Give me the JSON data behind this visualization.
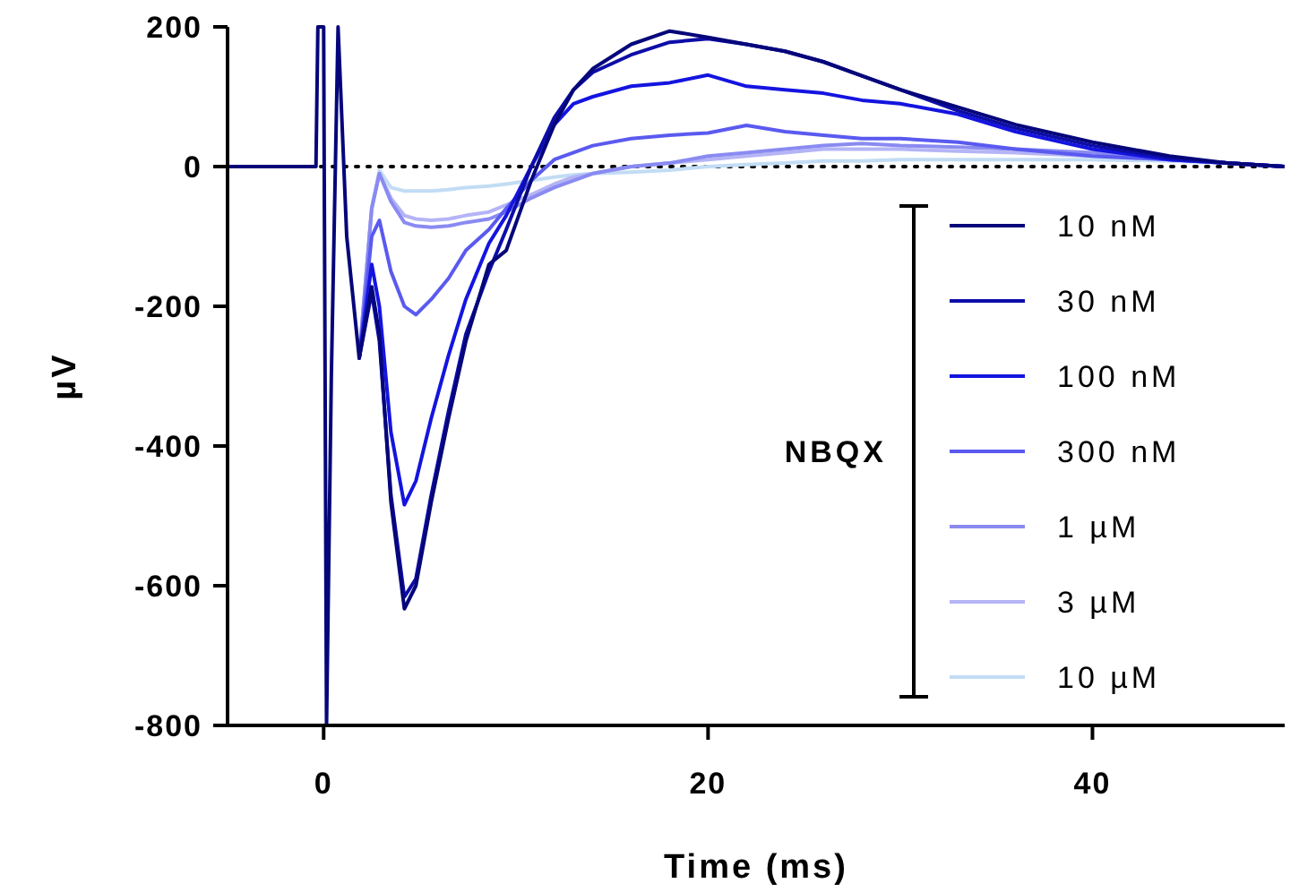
{
  "chart_data": {
    "type": "line",
    "xlabel": "Time (ms)",
    "ylabel": "µV",
    "legend_title": "NBQX",
    "xlim": [
      -5,
      50
    ],
    "ylim": [
      -800,
      200
    ],
    "xticks": [
      0,
      20,
      40
    ],
    "yticks": [
      -800,
      -600,
      -400,
      -200,
      0,
      200
    ],
    "grid": false,
    "legend": "bottom right",
    "marker": "none",
    "line_style": "solid",
    "ref_lines": [
      {
        "axis": "y",
        "value": 0,
        "color": "#000000",
        "line_style": "dotted"
      }
    ],
    "x": [
      -5,
      -2,
      -0.4,
      -0.3,
      0,
      0.15,
      0.4,
      0.75,
      1.2,
      1.85,
      2.5,
      2.9,
      3.5,
      4.2,
      4.8,
      5.6,
      6.5,
      7.4,
      8.6,
      9.5,
      10.8,
      12,
      13,
      14,
      16,
      18,
      20,
      22,
      24,
      26,
      28,
      30,
      33,
      36,
      40,
      44,
      47,
      50
    ],
    "series": [
      {
        "name": "10 nM",
        "color": "#06067a",
        "values": [
          0,
          0,
          0,
          200,
          200,
          -800,
          -300,
          200,
          -100,
          -274,
          -172,
          -240,
          -480,
          -633,
          -600,
          -480,
          -360,
          -250,
          -140,
          -120,
          -20,
          60,
          110,
          140,
          175,
          194,
          185,
          175,
          165,
          150,
          130,
          110,
          85,
          60,
          35,
          15,
          5,
          0
        ]
      },
      {
        "name": "30 nM",
        "color": "#0d0da8",
        "values": [
          null,
          null,
          null,
          null,
          null,
          null,
          null,
          null,
          null,
          -274,
          -180,
          -250,
          -470,
          -616,
          -590,
          -470,
          -350,
          -240,
          -150,
          -90,
          0,
          70,
          110,
          135,
          160,
          178,
          183,
          175,
          165,
          150,
          130,
          110,
          80,
          55,
          30,
          12,
          5,
          0
        ]
      },
      {
        "name": "100 nM",
        "color": "#1414e0",
        "values": [
          null,
          null,
          null,
          null,
          null,
          null,
          null,
          null,
          null,
          -274,
          -140,
          -200,
          -380,
          -484,
          -450,
          -360,
          -270,
          -190,
          -110,
          -70,
          0,
          60,
          90,
          100,
          115,
          120,
          131,
          115,
          110,
          105,
          95,
          90,
          75,
          50,
          25,
          10,
          5,
          0
        ]
      },
      {
        "name": "300 nM",
        "color": "#5a5af0",
        "values": [
          null,
          null,
          null,
          null,
          null,
          null,
          null,
          null,
          null,
          -274,
          -100,
          -77,
          -150,
          -200,
          -212,
          -190,
          -160,
          -120,
          -90,
          -60,
          -20,
          10,
          20,
          30,
          40,
          45,
          48,
          59,
          50,
          45,
          40,
          40,
          35,
          25,
          15,
          10,
          5,
          0
        ]
      },
      {
        "name": "1 µM",
        "color": "#8a8af2",
        "values": [
          null,
          null,
          null,
          null,
          null,
          null,
          null,
          null,
          null,
          -274,
          -60,
          -10,
          -50,
          -80,
          -85,
          -87,
          -85,
          -80,
          -75,
          -65,
          -45,
          -30,
          -20,
          -10,
          0,
          5,
          15,
          20,
          25,
          30,
          33,
          30,
          28,
          25,
          20,
          10,
          5,
          0
        ]
      },
      {
        "name": "3 µM",
        "color": "#b4b4f6",
        "values": [
          null,
          null,
          null,
          null,
          null,
          null,
          null,
          null,
          null,
          -274,
          -60,
          -10,
          -45,
          -70,
          -75,
          -77,
          -75,
          -70,
          -65,
          -55,
          -40,
          -25,
          -15,
          -10,
          0,
          5,
          10,
          15,
          20,
          25,
          25,
          25,
          22,
          20,
          15,
          10,
          5,
          0
        ]
      },
      {
        "name": "10 µM",
        "color": "#c2dcf4",
        "values": [
          null,
          null,
          null,
          null,
          null,
          null,
          null,
          null,
          null,
          -274,
          -60,
          -5,
          -30,
          -35,
          -35,
          -35,
          -33,
          -30,
          -28,
          -25,
          -20,
          -15,
          -12,
          -10,
          -8,
          -5,
          0,
          3,
          5,
          8,
          8,
          10,
          10,
          10,
          10,
          8,
          5,
          0
        ]
      }
    ]
  }
}
